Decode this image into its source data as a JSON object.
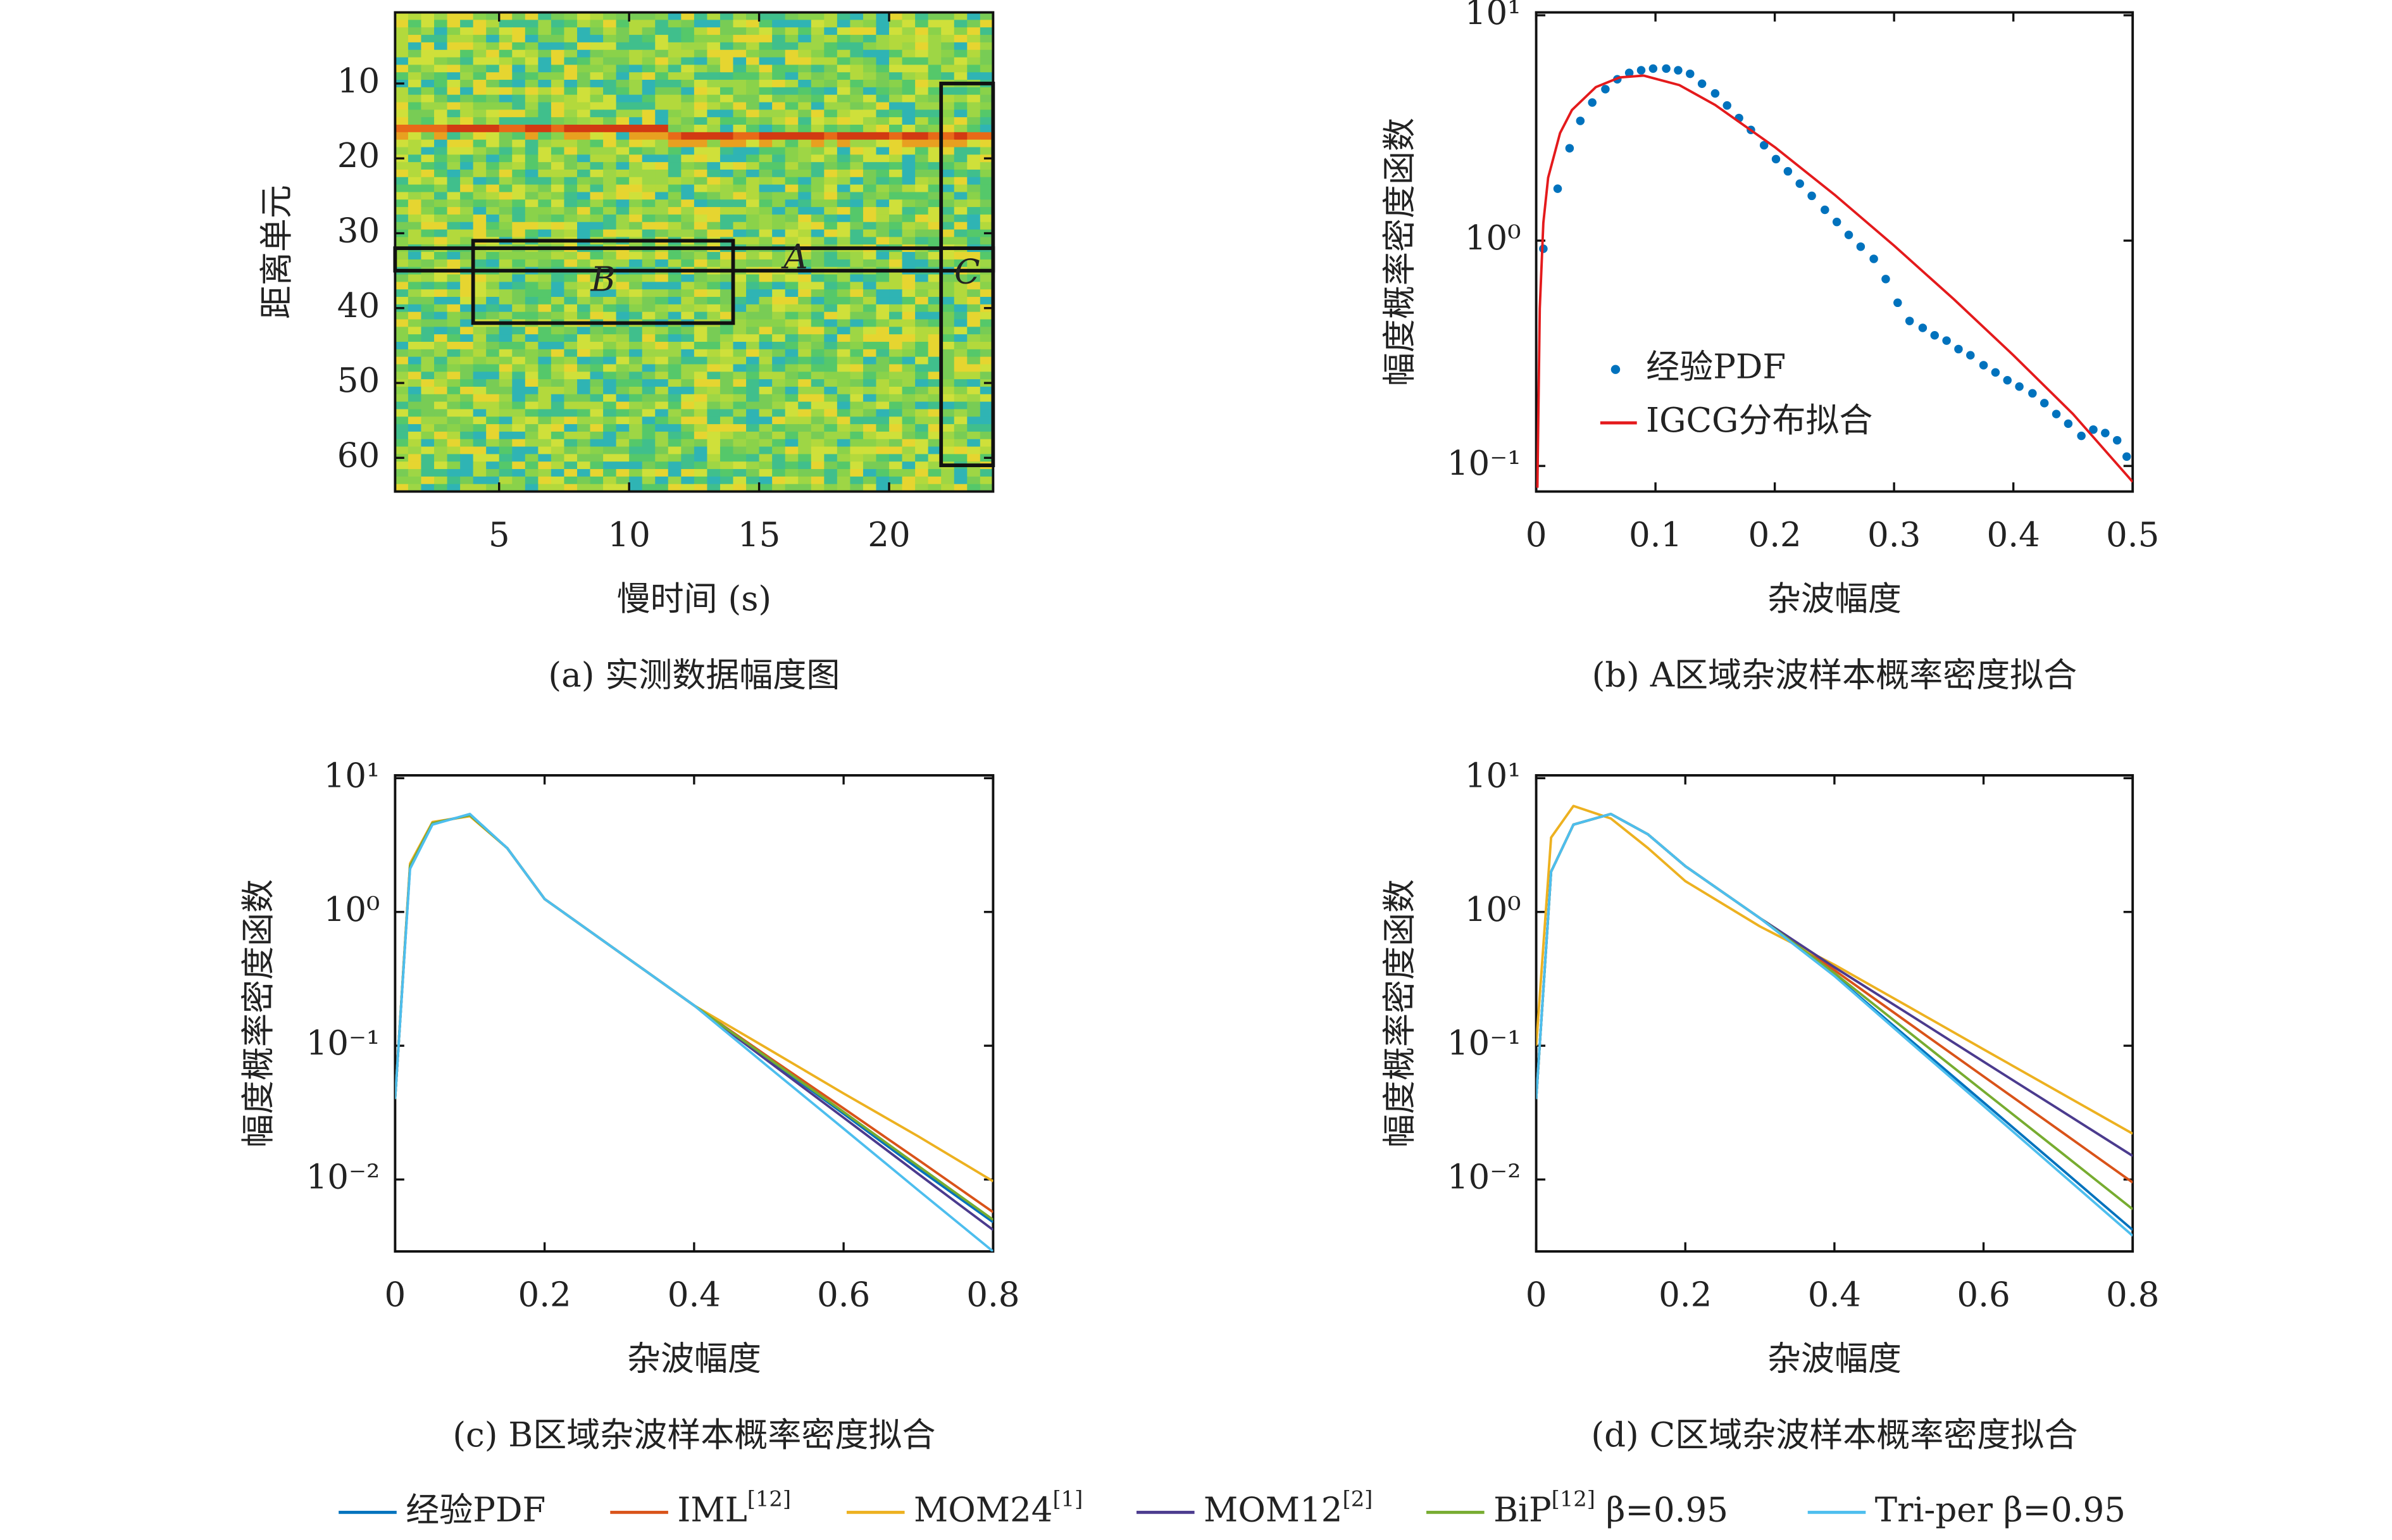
{
  "chart_data": [
    {
      "type": "heatmap",
      "caption": "(a) 实测数据幅度图",
      "xlabel": "慢时间 (s)",
      "ylabel": "距离单元",
      "xlim": [
        1,
        24
      ],
      "ylim": [
        0.5,
        64.5
      ],
      "y_reversed": true,
      "xticks": [
        5,
        10,
        15,
        20
      ],
      "yticks": [
        10,
        20,
        30,
        40,
        50,
        60
      ],
      "regions": [
        {
          "label": "A",
          "x": [
            1,
            24
          ],
          "y": [
            32,
            35
          ]
        },
        {
          "label": "B",
          "x": [
            4,
            14
          ],
          "y": [
            31,
            42
          ]
        },
        {
          "label": "C",
          "x": [
            22,
            24
          ],
          "y": [
            10,
            61
          ]
        }
      ]
    },
    {
      "type": "line",
      "caption": "(b) A区域杂波样本概率密度拟合",
      "xlabel": "杂波幅度",
      "ylabel": "幅度概率密度函数",
      "xlim": [
        0,
        0.5
      ],
      "ylim": [
        0.077,
        10.3
      ],
      "ylog": true,
      "legend": "lower left",
      "xticks": [
        0,
        0.1,
        0.2,
        0.3,
        0.4,
        0.5
      ],
      "yticks": [
        {
          "value": 10,
          "label": "10¹"
        },
        {
          "value": 1,
          "label": "10⁰"
        },
        {
          "value": 0.1,
          "label": "10⁻¹"
        }
      ],
      "series": [
        {
          "name": "经验PDF",
          "color": "#0072bd",
          "mode": "markers",
          "x": [
            0.006,
            0.018,
            0.028,
            0.037,
            0.047,
            0.058,
            0.068,
            0.078,
            0.088,
            0.098,
            0.109,
            0.119,
            0.129,
            0.139,
            0.15,
            0.16,
            0.17,
            0.18,
            0.191,
            0.201,
            0.211,
            0.221,
            0.231,
            0.242,
            0.252,
            0.262,
            0.272,
            0.283,
            0.293,
            0.303,
            0.313,
            0.324,
            0.334,
            0.344,
            0.354,
            0.364,
            0.375,
            0.385,
            0.395,
            0.405,
            0.416,
            0.426,
            0.436,
            0.446,
            0.457,
            0.467,
            0.477,
            0.487,
            0.495
          ],
          "values": [
            0.92,
            1.7,
            2.57,
            3.4,
            4.1,
            4.7,
            5.2,
            5.55,
            5.7,
            5.8,
            5.8,
            5.7,
            5.5,
            4.97,
            4.5,
            3.98,
            3.5,
            3.1,
            2.65,
            2.3,
            2.03,
            1.79,
            1.58,
            1.37,
            1.21,
            1.06,
            0.94,
            0.83,
            0.675,
            0.53,
            0.44,
            0.41,
            0.38,
            0.36,
            0.33,
            0.31,
            0.28,
            0.26,
            0.24,
            0.225,
            0.21,
            0.19,
            0.17,
            0.154,
            0.136,
            0.145,
            0.14,
            0.13,
            0.11
          ]
        },
        {
          "name": "IGCG分布拟合",
          "color": "#e41a1c",
          "mode": "lines",
          "x": [
            0.001,
            0.003,
            0.006,
            0.01,
            0.02,
            0.03,
            0.05,
            0.07,
            0.09,
            0.12,
            0.15,
            0.2,
            0.25,
            0.3,
            0.35,
            0.4,
            0.45,
            0.5
          ],
          "values": [
            0.08,
            0.5,
            1.2,
            1.9,
            3.0,
            3.8,
            4.8,
            5.3,
            5.4,
            4.9,
            4.0,
            2.6,
            1.6,
            0.95,
            0.55,
            0.31,
            0.17,
            0.085
          ]
        }
      ]
    },
    {
      "type": "line",
      "caption": "(c) B区域杂波样本概率密度拟合",
      "xlabel": "杂波幅度",
      "ylabel": "幅度概率密度函数",
      "xlim": [
        0,
        0.8
      ],
      "ylim": [
        0.0029,
        10.5
      ],
      "ylog": true,
      "xticks": [
        0,
        0.2,
        0.4,
        0.6,
        0.8
      ],
      "yticks": [
        {
          "value": 10,
          "label": "10¹"
        },
        {
          "value": 1,
          "label": "10⁰"
        },
        {
          "value": 0.1,
          "label": "10⁻¹"
        },
        {
          "value": 0.01,
          "label": "10⁻²"
        }
      ],
      "x": [
        0,
        0.02,
        0.05,
        0.1,
        0.15,
        0.2,
        0.3,
        0.4,
        0.5,
        0.6,
        0.7,
        0.8
      ],
      "series": [
        {
          "values": [
            0.04,
            2.2,
            4.6,
            5.3,
            3.0,
            1.25,
            0.5,
            0.2,
            0.079,
            0.031,
            0.012,
            0.0048
          ]
        },
        {
          "values": [
            0.04,
            2.2,
            4.6,
            5.3,
            3.0,
            1.25,
            0.5,
            0.2,
            0.082,
            0.034,
            0.014,
            0.0057
          ]
        },
        {
          "values": [
            0.04,
            2.3,
            4.7,
            5.2,
            3.0,
            1.25,
            0.5,
            0.2,
            0.094,
            0.044,
            0.021,
            0.0097
          ]
        },
        {
          "values": [
            0.04,
            2.2,
            4.6,
            5.3,
            3.0,
            1.25,
            0.5,
            0.2,
            0.076,
            0.029,
            0.011,
            0.0042
          ]
        },
        {
          "values": [
            0.04,
            2.2,
            4.6,
            5.3,
            3.0,
            1.25,
            0.5,
            0.2,
            0.08,
            0.032,
            0.0126,
            0.005
          ]
        },
        {
          "values": [
            0.04,
            2.1,
            4.5,
            5.4,
            3.0,
            1.25,
            0.5,
            0.2,
            0.069,
            0.024,
            0.0083,
            0.0029
          ]
        }
      ]
    },
    {
      "type": "line",
      "caption": "(d) C区域杂波样本概率密度拟合",
      "xlabel": "杂波幅度",
      "ylabel": "幅度概率密度函数",
      "xlim": [
        0,
        0.8
      ],
      "ylim": [
        0.0029,
        10.5
      ],
      "ylog": true,
      "xticks": [
        0,
        0.2,
        0.4,
        0.6,
        0.8
      ],
      "yticks": [
        {
          "value": 10,
          "label": "10¹"
        },
        {
          "value": 1,
          "label": "10⁰"
        },
        {
          "value": 0.1,
          "label": "10⁻¹"
        },
        {
          "value": 0.01,
          "label": "10⁻²"
        }
      ],
      "x": [
        0,
        0.02,
        0.05,
        0.1,
        0.15,
        0.2,
        0.3,
        0.4,
        0.5,
        0.6,
        0.7,
        0.8
      ],
      "series": [
        {
          "values": [
            0.04,
            2.0,
            4.5,
            5.4,
            3.8,
            2.2,
            0.9,
            0.336,
            0.1125,
            0.0377,
            0.0126,
            0.0042
          ]
        },
        {
          "values": [
            0.04,
            2.0,
            4.5,
            5.4,
            3.8,
            2.2,
            0.9,
            0.367,
            0.147,
            0.059,
            0.0237,
            0.0095
          ]
        },
        {
          "values": [
            0.1,
            3.6,
            6.2,
            5.0,
            3.0,
            1.7,
            0.78,
            0.403,
            0.195,
            0.094,
            0.0455,
            0.022
          ]
        },
        {
          "values": [
            0.04,
            2.0,
            4.5,
            5.4,
            3.8,
            2.2,
            0.9,
            0.386,
            0.172,
            0.076,
            0.0338,
            0.015
          ]
        },
        {
          "values": [
            0.04,
            2.0,
            4.5,
            5.4,
            3.8,
            2.2,
            0.9,
            0.349,
            0.126,
            0.0457,
            0.0166,
            0.006
          ]
        },
        {
          "values": [
            0.04,
            2.0,
            4.5,
            5.4,
            3.8,
            2.2,
            0.9,
            0.332,
            0.108,
            0.0355,
            0.0116,
            0.0038
          ]
        }
      ]
    }
  ],
  "legend": {
    "position": "bottom",
    "entries": [
      {
        "name": "经验PDF",
        "color": "#0072bd"
      },
      {
        "name": "IML[12]",
        "color": "#d95319"
      },
      {
        "name": "MOM24[1]",
        "color": "#edb120"
      },
      {
        "name": "MOM12[2]",
        "color": "#4b3b8e"
      },
      {
        "name": "BiP[12] β=0.95",
        "color": "#77ac30"
      },
      {
        "name": "Tri-per β=0.95",
        "color": "#4dbeee"
      }
    ]
  }
}
